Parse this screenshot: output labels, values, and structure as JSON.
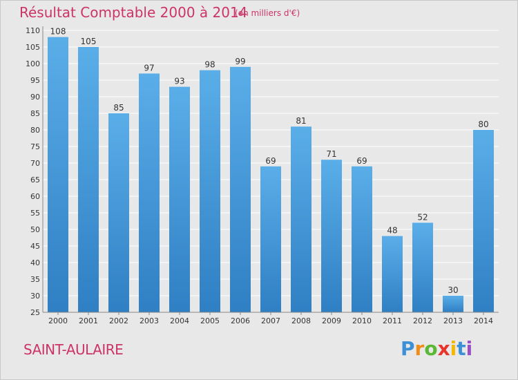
{
  "header": {
    "title": "Résultat Comptable 2000 à 2014",
    "subtitle": "(en milliers d'€)"
  },
  "footer": {
    "commune": "SAINT-AULAIRE",
    "logo_letters": [
      "P",
      "r",
      "o",
      "x",
      "i",
      "t",
      "i"
    ]
  },
  "colors": {
    "title": "#cc3366",
    "bar_light": "#5aaee8",
    "bar_dark": "#2f7fc4",
    "grid": "#ffffff",
    "plot_bg": "#e8e8e8",
    "axis_text": "#333333"
  },
  "chart_data": {
    "type": "bar",
    "title": "Résultat Comptable 2000 à 2014",
    "subtitle": "(en milliers d'€)",
    "xlabel": "",
    "ylabel": "",
    "categories": [
      "2000",
      "2001",
      "2002",
      "2003",
      "2004",
      "2005",
      "2006",
      "2007",
      "2008",
      "2009",
      "2010",
      "2011",
      "2012",
      "2013",
      "2014"
    ],
    "values": [
      108,
      105,
      85,
      97,
      93,
      98,
      99,
      69,
      81,
      71,
      69,
      48,
      52,
      30,
      80
    ],
    "ylim": [
      25,
      110
    ],
    "yticks": [
      25,
      30,
      35,
      40,
      45,
      50,
      55,
      60,
      65,
      70,
      75,
      80,
      85,
      90,
      95,
      100,
      105,
      110
    ],
    "grid": true,
    "data_labels": true
  }
}
